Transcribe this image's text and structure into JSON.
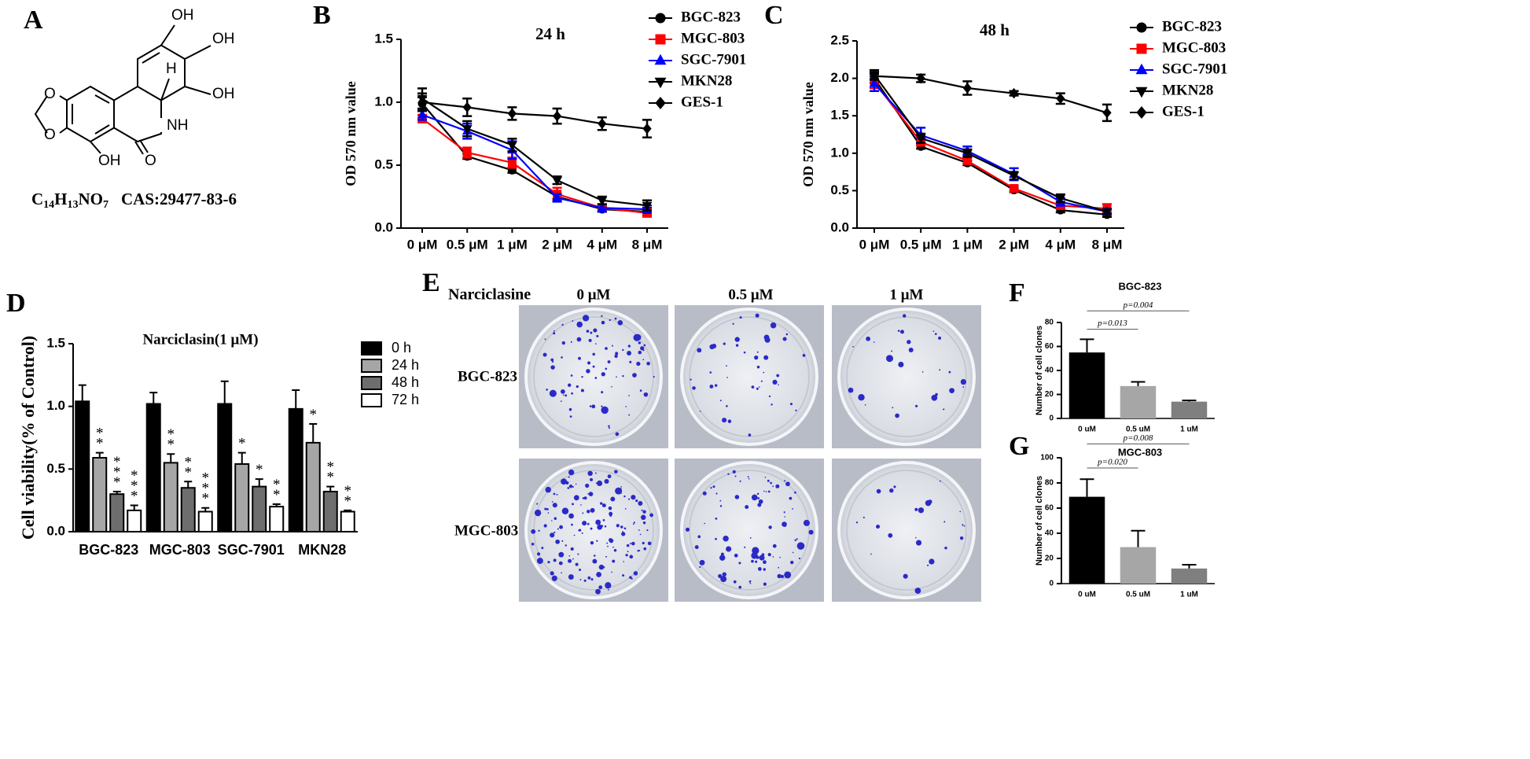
{
  "structure": {
    "panel": "A",
    "atoms": [
      "OH",
      "OH",
      "OH",
      "H",
      "NH",
      "OH",
      "O",
      "O",
      "O"
    ],
    "formula": [
      "C",
      "14",
      "H",
      "13",
      "NO",
      "7"
    ],
    "cas": "CAS:29477-83-6"
  },
  "images": {
    "panel": "E",
    "title": "Narciclasine",
    "columns": [
      "0 μM",
      "0.5 μM",
      "1 μM"
    ],
    "rows": [
      "BGC-823",
      "MGC-803"
    ]
  },
  "chart_data": [
    {
      "type": "line",
      "panel": "B",
      "title": "24 h",
      "ylabel": "OD 570 nm value",
      "categories": [
        "0 μM",
        "0.5 μM",
        "1 μM",
        "2 μM",
        "4 μM",
        "8 μM"
      ],
      "ylim": [
        0,
        1.5
      ],
      "yticks": [
        {
          "value": 0,
          "label": "0.0"
        },
        0.5,
        {
          "value": 1,
          "label": "1.0"
        },
        1.5
      ],
      "series": [
        {
          "name": "BGC-823",
          "color": "#000000",
          "marker": "circle",
          "values": [
            0.99,
            0.57,
            0.46,
            0.25,
            0.15,
            0.13
          ],
          "errors": [
            0.05,
            0.02,
            0.02,
            0.02,
            0.02,
            0.03
          ]
        },
        {
          "name": "MGC-803",
          "color": "#ff0000",
          "marker": "square",
          "values": [
            0.87,
            0.6,
            0.52,
            0.27,
            0.16,
            0.12
          ],
          "errors": [
            0.03,
            0.04,
            0.04,
            0.05,
            0.02,
            0.03
          ]
        },
        {
          "name": "SGC-7901",
          "color": "#0000ff",
          "marker": "triangle-up",
          "values": [
            0.9,
            0.77,
            0.62,
            0.24,
            0.16,
            0.15
          ],
          "errors": [
            0.04,
            0.06,
            0.07,
            0.03,
            0.03,
            0.03
          ]
        },
        {
          "name": "MKN28",
          "color": "#000000",
          "marker": "triangle-down",
          "values": [
            1.03,
            0.79,
            0.66,
            0.38,
            0.22,
            0.18
          ],
          "errors": [
            0.08,
            0.06,
            0.05,
            0.03,
            0.03,
            0.04
          ]
        },
        {
          "name": "GES-1",
          "color": "#000000",
          "marker": "diamond",
          "values": [
            1.0,
            0.96,
            0.91,
            0.89,
            0.83,
            0.79
          ],
          "errors": [
            0.07,
            0.07,
            0.05,
            0.06,
            0.05,
            0.07
          ]
        }
      ]
    },
    {
      "type": "line",
      "panel": "C",
      "title": "48 h",
      "ylabel": "OD 570 nm value",
      "categories": [
        "0 μM",
        "0.5 μM",
        "1 μM",
        "2 μM",
        "4 μM",
        "8 μM"
      ],
      "ylim": [
        0,
        2.5
      ],
      "yticks": [
        {
          "value": 0,
          "label": "0.0"
        },
        0.5,
        {
          "value": 1,
          "label": "1.0"
        },
        1.5,
        {
          "value": 2,
          "label": "2.0"
        },
        2.5
      ],
      "series": [
        {
          "name": "BGC-823",
          "color": "#000000",
          "marker": "circle",
          "values": [
            2.0,
            1.09,
            0.87,
            0.51,
            0.24,
            0.18
          ],
          "errors": [
            0.06,
            0.03,
            0.03,
            0.03,
            0.03,
            0.03
          ]
        },
        {
          "name": "MGC-803",
          "color": "#ff0000",
          "marker": "square",
          "values": [
            1.95,
            1.15,
            0.9,
            0.53,
            0.3,
            0.26
          ],
          "errors": [
            0.08,
            0.05,
            0.04,
            0.04,
            0.04,
            0.06
          ]
        },
        {
          "name": "SGC-7901",
          "color": "#0000ff",
          "marker": "triangle-up",
          "values": [
            1.93,
            1.24,
            1.03,
            0.72,
            0.35,
            0.22
          ],
          "errors": [
            0.1,
            0.1,
            0.06,
            0.08,
            0.05,
            0.04
          ]
        },
        {
          "name": "MKN28",
          "color": "#000000",
          "marker": "triangle-down",
          "values": [
            2.05,
            1.2,
            1.0,
            0.7,
            0.4,
            0.22
          ],
          "errors": [
            0.06,
            0.06,
            0.05,
            0.05,
            0.05,
            0.03
          ]
        },
        {
          "name": "GES-1",
          "color": "#000000",
          "marker": "diamond",
          "values": [
            2.03,
            2.0,
            1.87,
            1.8,
            1.73,
            1.54
          ],
          "errors": [
            0.05,
            0.05,
            0.09,
            0.03,
            0.07,
            0.11
          ]
        }
      ]
    },
    {
      "type": "bar",
      "panel": "D",
      "title": "Narciclasin(1 μM)",
      "ylabel": "Cell viability(% of Control)",
      "categories": [
        "BGC-823",
        "MGC-803",
        "SGC-7901",
        "MKN28"
      ],
      "ylim": [
        0,
        1.5
      ],
      "yticks": [
        {
          "value": 0,
          "label": "0.0"
        },
        0.5,
        {
          "value": 1,
          "label": "1.0"
        },
        1.5
      ],
      "series": [
        {
          "name": "0 h",
          "color": "#000000",
          "values": [
            1.04,
            1.02,
            1.02,
            0.98
          ],
          "errors": [
            0.13,
            0.09,
            0.18,
            0.15
          ],
          "stars": [
            null,
            null,
            null,
            null
          ]
        },
        {
          "name": "24 h",
          "color": "#a6a6a6",
          "values": [
            0.59,
            0.55,
            0.54,
            0.71
          ],
          "errors": [
            0.04,
            0.07,
            0.09,
            0.15
          ],
          "stars": [
            "**",
            "**",
            "*",
            "*"
          ]
        },
        {
          "name": "48 h",
          "color": "#6e6e6e",
          "values": [
            0.3,
            0.35,
            0.36,
            0.32
          ],
          "errors": [
            0.02,
            0.05,
            0.06,
            0.04
          ],
          "stars": [
            "***",
            "**",
            "*",
            "**"
          ]
        },
        {
          "name": "72 h",
          "color": "#ffffff",
          "values": [
            0.17,
            0.16,
            0.2,
            0.16
          ],
          "errors": [
            0.04,
            0.03,
            0.02,
            0.01
          ],
          "stars": [
            "***",
            "***",
            "**",
            "**"
          ]
        }
      ]
    },
    {
      "type": "bar",
      "panel": "F",
      "title": "BGC-823",
      "ylabel": "Number of cell clones",
      "categories": [
        "0 uM",
        "0.5 uM",
        "1 uM"
      ],
      "values": [
        55,
        27,
        14
      ],
      "errors": [
        11,
        3.5,
        1
      ],
      "colors": [
        "#000000",
        "#a6a6a6",
        "#7f7f7f"
      ],
      "ylim": [
        0,
        80
      ],
      "yticks": [
        0,
        20,
        40,
        60,
        80
      ],
      "comparisons": [
        "p=0.013",
        "p=0.004"
      ]
    },
    {
      "type": "bar",
      "panel": "G",
      "title": "MGC-803",
      "ylabel": "Number of cell clones",
      "categories": [
        "0 uM",
        "0.5 uM",
        "1 uM"
      ],
      "values": [
        69,
        29,
        12
      ],
      "errors": [
        14,
        13,
        3
      ],
      "colors": [
        "#000000",
        "#a6a6a6",
        "#7f7f7f"
      ],
      "ylim": [
        0,
        100
      ],
      "yticks": [
        0,
        20,
        40,
        60,
        80,
        100
      ],
      "comparisons": [
        "p=0.020",
        "p=0.008"
      ]
    }
  ]
}
